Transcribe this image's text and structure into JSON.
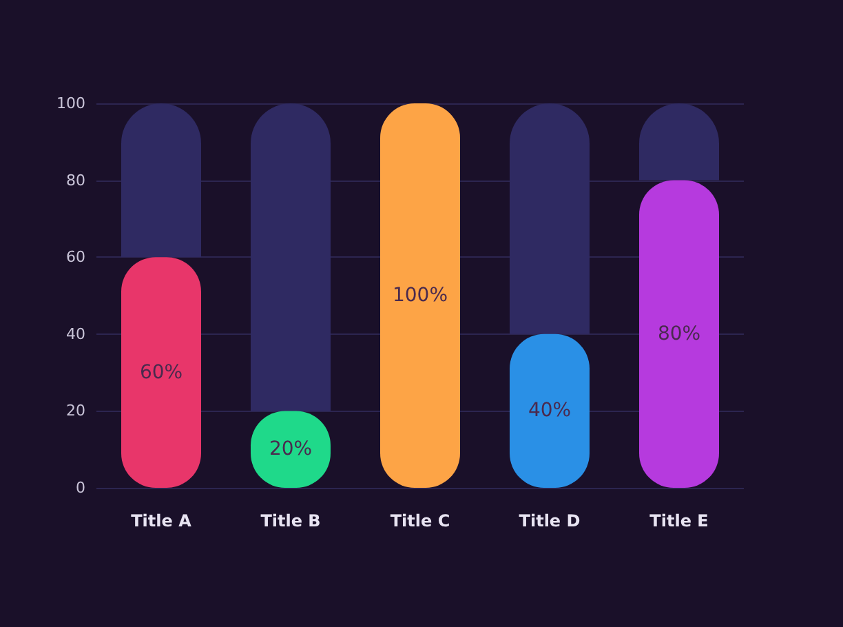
{
  "chart_data": {
    "type": "bar",
    "categories": [
      "Title A",
      "Title B",
      "Title C",
      "Title D",
      "Title E"
    ],
    "stacked": true,
    "series": [
      {
        "values": [
          60,
          20,
          100,
          40,
          80
        ],
        "colors": [
          "#e8366a",
          "#1fd98a",
          "#fda446",
          "#2a90e6",
          "#b63ade"
        ],
        "value_labels": [
          "60%",
          "20%",
          "100%",
          "40%",
          "80%"
        ]
      },
      {
        "color": "#2f2a62",
        "values": [
          40,
          80,
          null,
          60,
          20
        ]
      }
    ],
    "ylim": [
      0,
      100
    ],
    "yticks": [
      0,
      20,
      40,
      60,
      80,
      100
    ],
    "grid": "y"
  }
}
